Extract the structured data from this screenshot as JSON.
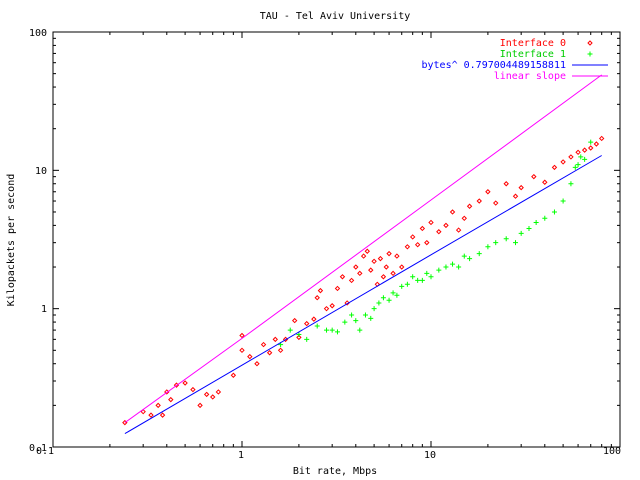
{
  "chart_data": {
    "type": "scatter",
    "title": "TAU - Tel Aviv University",
    "xlabel": "Bit rate, Mbps",
    "ylabel": "Kilopackets per second",
    "xscale": "log",
    "yscale": "log",
    "xlim": [
      0.1,
      100
    ],
    "ylim": [
      0.1,
      100
    ],
    "xticks": [
      "0.1",
      "1",
      "10",
      "100"
    ],
    "yticks": [
      "0.1",
      "1",
      "10",
      "100"
    ],
    "grid": false,
    "legend_position": "top-right",
    "series": [
      {
        "name": "Interface 0",
        "kind": "points",
        "marker": "diamond",
        "color": "#ff0000",
        "points": [
          [
            0.24,
            0.15
          ],
          [
            0.3,
            0.18
          ],
          [
            0.33,
            0.17
          ],
          [
            0.36,
            0.2
          ],
          [
            0.38,
            0.17
          ],
          [
            0.4,
            0.25
          ],
          [
            0.42,
            0.22
          ],
          [
            0.45,
            0.28
          ],
          [
            0.5,
            0.29
          ],
          [
            0.55,
            0.26
          ],
          [
            0.6,
            0.2
          ],
          [
            0.65,
            0.24
          ],
          [
            0.7,
            0.23
          ],
          [
            0.75,
            0.25
          ],
          [
            0.9,
            0.33
          ],
          [
            1.0,
            0.5
          ],
          [
            1.0,
            0.64
          ],
          [
            1.1,
            0.45
          ],
          [
            1.2,
            0.4
          ],
          [
            1.3,
            0.55
          ],
          [
            1.4,
            0.48
          ],
          [
            1.5,
            0.6
          ],
          [
            1.6,
            0.5
          ],
          [
            1.7,
            0.6
          ],
          [
            1.9,
            0.82
          ],
          [
            2.0,
            0.62
          ],
          [
            2.2,
            0.78
          ],
          [
            2.4,
            0.84
          ],
          [
            2.5,
            1.2
          ],
          [
            2.6,
            1.35
          ],
          [
            2.8,
            1.0
          ],
          [
            3.0,
            1.05
          ],
          [
            3.2,
            1.4
          ],
          [
            3.4,
            1.7
          ],
          [
            3.6,
            1.1
          ],
          [
            3.8,
            1.6
          ],
          [
            4.0,
            2.0
          ],
          [
            4.2,
            1.8
          ],
          [
            4.4,
            2.4
          ],
          [
            4.6,
            2.6
          ],
          [
            4.8,
            1.9
          ],
          [
            5.0,
            2.2
          ],
          [
            5.2,
            1.5
          ],
          [
            5.4,
            2.3
          ],
          [
            5.6,
            1.7
          ],
          [
            5.8,
            2.0
          ],
          [
            6.0,
            2.5
          ],
          [
            6.3,
            1.8
          ],
          [
            6.6,
            2.4
          ],
          [
            7.0,
            2.0
          ],
          [
            7.5,
            2.8
          ],
          [
            8.0,
            3.3
          ],
          [
            8.5,
            2.9
          ],
          [
            9.0,
            3.8
          ],
          [
            9.5,
            3.0
          ],
          [
            10,
            4.2
          ],
          [
            11,
            3.6
          ],
          [
            12,
            4.0
          ],
          [
            13,
            5.0
          ],
          [
            14,
            3.7
          ],
          [
            15,
            4.5
          ],
          [
            16,
            5.5
          ],
          [
            18,
            6.0
          ],
          [
            20,
            7.0
          ],
          [
            22,
            5.8
          ],
          [
            25,
            8.0
          ],
          [
            28,
            6.5
          ],
          [
            30,
            7.5
          ],
          [
            35,
            9.0
          ],
          [
            40,
            8.2
          ],
          [
            45,
            10.5
          ],
          [
            50,
            11.5
          ],
          [
            55,
            12.5
          ],
          [
            60,
            13.5
          ],
          [
            65,
            14.0
          ],
          [
            70,
            14.5
          ],
          [
            75,
            15.5
          ],
          [
            80,
            17.0
          ]
        ]
      },
      {
        "name": "Interface 1",
        "kind": "points",
        "marker": "plus",
        "color": "#00ff00",
        "points": [
          [
            1.6,
            0.55
          ],
          [
            1.8,
            0.7
          ],
          [
            2.0,
            0.65
          ],
          [
            2.2,
            0.6
          ],
          [
            2.5,
            0.75
          ],
          [
            2.8,
            0.7
          ],
          [
            3.0,
            0.7
          ],
          [
            3.2,
            0.68
          ],
          [
            3.5,
            0.8
          ],
          [
            3.8,
            0.9
          ],
          [
            4.0,
            0.82
          ],
          [
            4.2,
            0.7
          ],
          [
            4.5,
            0.9
          ],
          [
            4.8,
            0.85
          ],
          [
            5.0,
            1.0
          ],
          [
            5.3,
            1.1
          ],
          [
            5.6,
            1.2
          ],
          [
            6.0,
            1.15
          ],
          [
            6.3,
            1.3
          ],
          [
            6.6,
            1.25
          ],
          [
            7.0,
            1.45
          ],
          [
            7.5,
            1.5
          ],
          [
            8.0,
            1.7
          ],
          [
            8.5,
            1.6
          ],
          [
            9.0,
            1.6
          ],
          [
            9.5,
            1.8
          ],
          [
            10,
            1.7
          ],
          [
            11,
            1.9
          ],
          [
            12,
            2.0
          ],
          [
            13,
            2.1
          ],
          [
            14,
            2.0
          ],
          [
            15,
            2.4
          ],
          [
            16,
            2.3
          ],
          [
            18,
            2.5
          ],
          [
            20,
            2.8
          ],
          [
            22,
            3.0
          ],
          [
            25,
            3.2
          ],
          [
            28,
            3.0
          ],
          [
            30,
            3.5
          ],
          [
            33,
            3.8
          ],
          [
            36,
            4.2
          ],
          [
            40,
            4.5
          ],
          [
            45,
            5.0
          ],
          [
            50,
            6.0
          ],
          [
            55,
            8.0
          ],
          [
            58,
            10.5
          ],
          [
            60,
            11.0
          ],
          [
            62,
            12.5
          ],
          [
            65,
            12.0
          ],
          [
            70,
            16.0
          ]
        ]
      },
      {
        "name": "bytes^ 0.797004489158811",
        "kind": "line",
        "color": "#0000ff",
        "x": [
          0.24,
          1,
          10,
          80
        ],
        "y": [
          0.125,
          0.39,
          2.45,
          12.8
        ]
      },
      {
        "name": "linear slope",
        "kind": "line",
        "color": "#ff00ff",
        "x": [
          0.24,
          1,
          10,
          80
        ],
        "y": [
          0.15,
          0.61,
          6.1,
          49
        ]
      }
    ]
  }
}
